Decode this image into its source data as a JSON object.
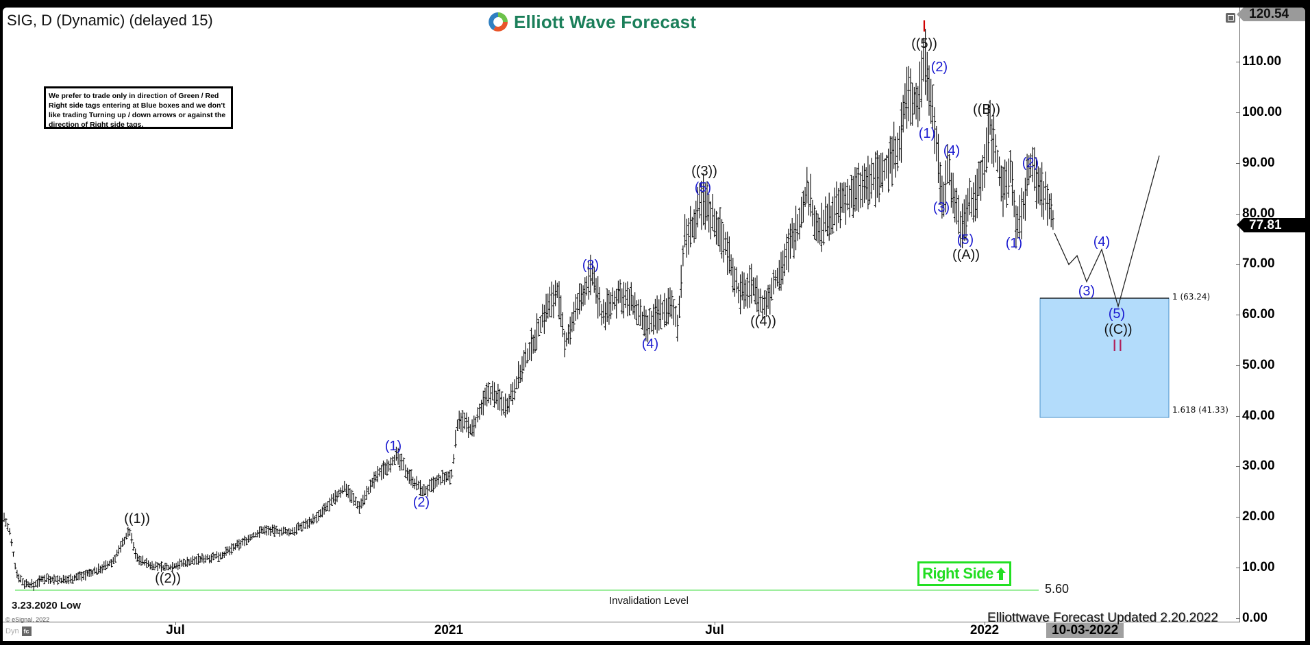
{
  "header": {
    "title": "SIG, D (Dynamic) (delayed 15)",
    "logo_text": "Elliott Wave Forecast"
  },
  "note_box": {
    "text": "We prefer to trade only in direction of Green / Red Right side tags entering at Blue boxes and we don't like trading Turning up / down arrows or against the direction of Right side tags."
  },
  "price_axis": {
    "ticks": [
      "110.00",
      "100.00",
      "90.00",
      "80.00",
      "70.00",
      "60.00",
      "50.00",
      "40.00",
      "30.00",
      "20.00",
      "10.00",
      "0.00"
    ],
    "high_tag": "120.54",
    "current_tag": "77.81"
  },
  "time_axis": {
    "ticks": [
      "Jul",
      "2021",
      "Jul",
      "2022"
    ],
    "cursor_date": "10-03-2022"
  },
  "annotations": {
    "low_label": "3.23.2020 Low",
    "invalidation_label": "Invalidation Level",
    "invalidation_value": "5.60",
    "right_side_tag": "Right Side",
    "fib_top": "1 (63.24)",
    "fib_bottom": "1.618 (41.33)",
    "updated": "Elliottwave Forecast Updated 2.20.2022",
    "copyright": "© eSignal, 2022",
    "dyn_label": "Dyn"
  },
  "wave_labels": [
    {
      "text": "((1))",
      "color": "black"
    },
    {
      "text": "((2))",
      "color": "black"
    },
    {
      "text": "(1)",
      "color": "blue"
    },
    {
      "text": "(2)",
      "color": "blue"
    },
    {
      "text": "(3)",
      "color": "blue"
    },
    {
      "text": "(4)",
      "color": "blue"
    },
    {
      "text": "(5)",
      "color": "blue"
    },
    {
      "text": "((3))",
      "color": "black"
    },
    {
      "text": "((4))",
      "color": "black"
    },
    {
      "text": "I",
      "color": "red"
    },
    {
      "text": "((5))",
      "color": "black"
    },
    {
      "text": "(1)",
      "color": "blue"
    },
    {
      "text": "(2)",
      "color": "blue"
    },
    {
      "text": "(3)",
      "color": "blue"
    },
    {
      "text": "(4)",
      "color": "blue"
    },
    {
      "text": "(5)",
      "color": "blue"
    },
    {
      "text": "((A))",
      "color": "black"
    },
    {
      "text": "((B))",
      "color": "black"
    },
    {
      "text": "(1)",
      "color": "blue"
    },
    {
      "text": "(2)",
      "color": "blue"
    },
    {
      "text": "(3)",
      "color": "blue"
    },
    {
      "text": "(4)",
      "color": "blue"
    },
    {
      "text": "(5)",
      "color": "blue"
    },
    {
      "text": "((C))",
      "color": "black"
    },
    {
      "text": "II",
      "color": "red"
    }
  ],
  "colors": {
    "blue_box": "#b3dcfb",
    "invalidation_line": "#7ee87e",
    "right_side_green": "#22dd22",
    "wave_blue": "#1a1ad0",
    "wave_red": "#d00000",
    "logo_green": "#1b7f5a"
  },
  "chart_data": {
    "type": "ohlc_bar",
    "title": "SIG, D (Dynamic) (delayed 15)",
    "xlabel": "",
    "ylabel": "Price",
    "ylim": [
      0,
      120.54
    ],
    "x_ticks": [
      "Jul 2020",
      "2021",
      "Jul 2021",
      "2022"
    ],
    "y_ticks": [
      0,
      10,
      20,
      30,
      40,
      50,
      60,
      70,
      80,
      90,
      100,
      110
    ],
    "grid": false,
    "last_price": 77.81,
    "series": [
      {
        "name": "SIG daily (approx swing points)",
        "points": [
          {
            "date": "2020-03-23",
            "value": 5.6,
            "label": "3.23.2020 Low"
          },
          {
            "date": "2020-06-08",
            "value": 17.5,
            "label": "((1))"
          },
          {
            "date": "2020-06-25",
            "value": 9.5,
            "label": "((2))"
          },
          {
            "date": "2020-11-25",
            "value": 32,
            "label": "(1)"
          },
          {
            "date": "2020-12-11",
            "value": 25,
            "label": "(2)"
          },
          {
            "date": "2021-03-15",
            "value": 68,
            "label": "(3)"
          },
          {
            "date": "2021-05-12",
            "value": 56,
            "label": "(4)"
          },
          {
            "date": "2021-06-15",
            "value": 83,
            "label": "(5) / ((3))"
          },
          {
            "date": "2021-08-05",
            "value": 60,
            "label": "((4))"
          },
          {
            "date": "2021-11-22",
            "value": 112,
            "label": "((5)) / I"
          },
          {
            "date": "2021-12-01",
            "value": 90,
            "label": "(1)"
          },
          {
            "date": "2021-12-06",
            "value": 104,
            "label": "(2)"
          },
          {
            "date": "2021-12-10",
            "value": 83,
            "label": "(3)"
          },
          {
            "date": "2021-12-14",
            "value": 91,
            "label": "(4)"
          },
          {
            "date": "2021-12-20",
            "value": 77,
            "label": "(5) / ((A))"
          },
          {
            "date": "2022-01-03",
            "value": 98.5,
            "label": "((B))"
          },
          {
            "date": "2022-01-20",
            "value": 76,
            "label": "(1)"
          },
          {
            "date": "2022-01-31",
            "value": 90,
            "label": "(2)"
          },
          {
            "date": "2022-02-18",
            "value": 77.81,
            "label": "last"
          }
        ]
      },
      {
        "name": "Projected path",
        "points": [
          {
            "step": 0,
            "value": 77.81
          },
          {
            "step": 1,
            "value": 70
          },
          {
            "step": 2,
            "value": 73
          },
          {
            "step": 3,
            "value": 66.5,
            "label": "(3)"
          },
          {
            "step": 4,
            "value": 73,
            "label": "(4)"
          },
          {
            "step": 5,
            "value": 62,
            "label": "(5) / ((C)) / II"
          },
          {
            "step": 6,
            "value": 91
          }
        ]
      }
    ],
    "annotations": {
      "blue_box": {
        "from": 63.24,
        "to": 41.33,
        "top_label": "1 (63.24)",
        "bottom_label": "1.618 (41.33)"
      },
      "invalidation_level": 5.6,
      "high_tag": 120.54,
      "updated": "2.20.2022"
    }
  }
}
